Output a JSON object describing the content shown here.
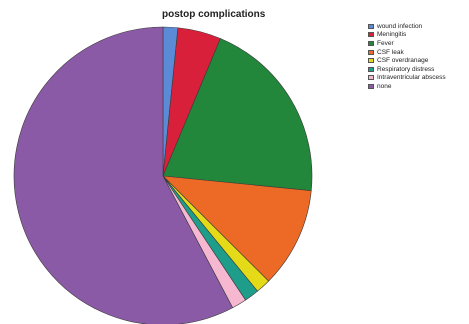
{
  "chart_data": {
    "type": "pie",
    "title": "postop complications",
    "slices": [
      {
        "label": "wound infection",
        "value": 1.6,
        "color": "#5b8bd6"
      },
      {
        "label": "Meningitis",
        "value": 4.7,
        "color": "#d9203a"
      },
      {
        "label": "Fever",
        "value": 20.3,
        "color": "#22873a"
      },
      {
        "label": "CSF leak",
        "value": 10.9,
        "color": "#ec6a25"
      },
      {
        "label": "CSF overdranage",
        "value": 1.6,
        "color": "#e4da18"
      },
      {
        "label": "Respiratory distress",
        "value": 1.6,
        "color": "#1e9e8a"
      },
      {
        "label": "Intraventricular abscess",
        "value": 1.6,
        "color": "#f5b8d0"
      },
      {
        "label": "none",
        "value": 57.8,
        "color": "#8a5aa6"
      }
    ],
    "legend_position": "right",
    "start_angle": "12 o'clock, clockwise"
  }
}
